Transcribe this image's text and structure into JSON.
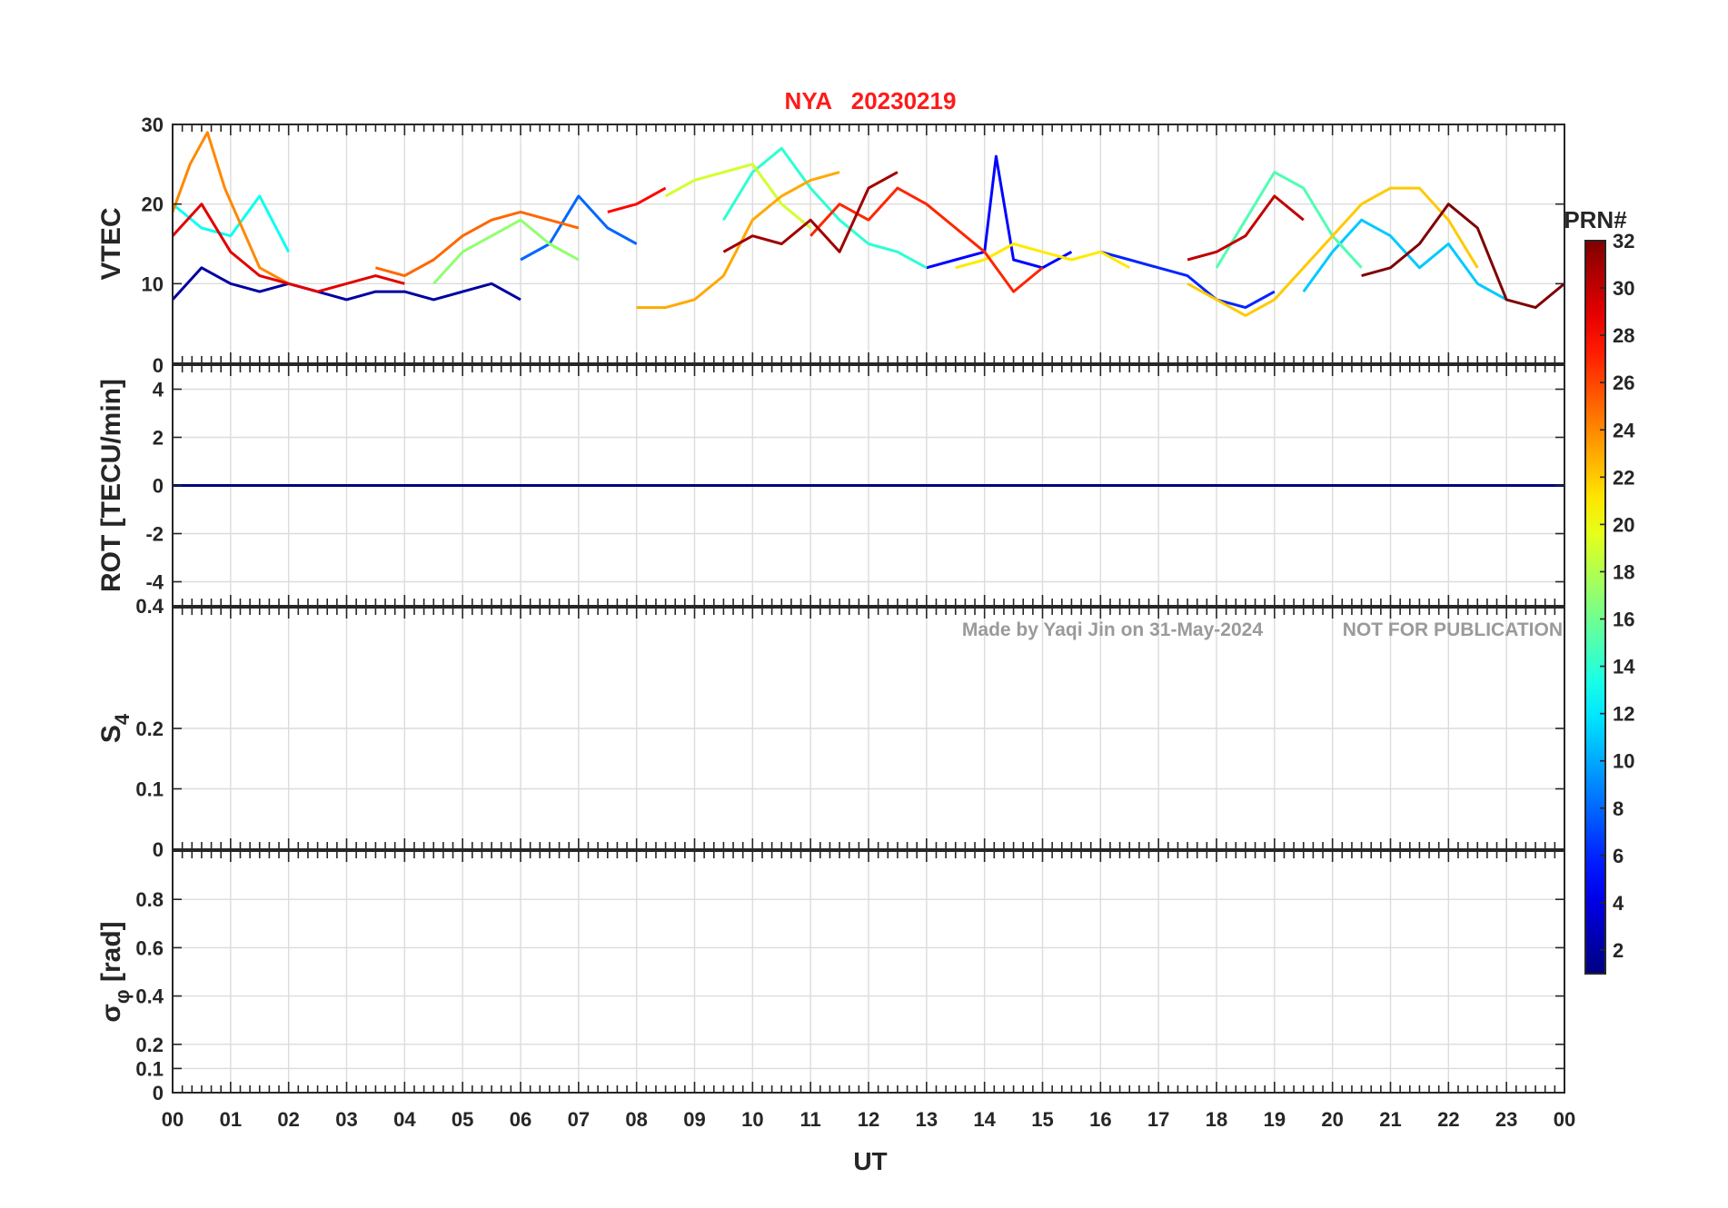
{
  "chart_data": {
    "type": "line",
    "title": "NYA   20230219",
    "title_color": "#ff1a1a",
    "xlabel": "UT",
    "x_ticks": [
      "00",
      "01",
      "02",
      "03",
      "04",
      "05",
      "06",
      "07",
      "08",
      "09",
      "10",
      "11",
      "12",
      "13",
      "14",
      "15",
      "16",
      "17",
      "18",
      "19",
      "20",
      "21",
      "22",
      "23",
      "00"
    ],
    "xlim": [
      0,
      24
    ],
    "grid": true,
    "watermark": {
      "left": "Made by Yaqi Jin on 31-May-2024",
      "right": "NOT FOR PUBLICATION"
    },
    "colorbar": {
      "title": "PRN#",
      "ticks": [
        "2",
        "4",
        "6",
        "8",
        "10",
        "12",
        "14",
        "16",
        "18",
        "20",
        "22",
        "24",
        "26",
        "28",
        "30",
        "32"
      ],
      "range": [
        1,
        32
      ],
      "colormap": "jet"
    },
    "panels": [
      {
        "id": "vtec",
        "ylabel": "VTEC",
        "ylim": [
          0,
          30
        ],
        "y_ticks": [
          {
            "v": 10,
            "label": "10"
          },
          {
            "v": 20,
            "label": "20"
          },
          {
            "v": 30,
            "label": "30"
          }
        ],
        "series": [
          {
            "prn": 2,
            "x": [
              0,
              0.5,
              1,
              1.5,
              2,
              2.5,
              3,
              3.5,
              4,
              4.5,
              5,
              5.5,
              6
            ],
            "y": [
              8,
              12,
              10,
              9,
              10,
              9,
              8,
              9,
              9,
              8,
              9,
              10,
              8
            ]
          },
          {
            "prn": 5,
            "x": [
              13,
              13.5,
              14,
              14.2,
              14.5,
              15,
              15.5
            ],
            "y": [
              12,
              13,
              14,
              26,
              13,
              12,
              14
            ]
          },
          {
            "prn": 6,
            "x": [
              16,
              16.5,
              17,
              17.5,
              18,
              18.5,
              19
            ],
            "y": [
              14,
              13,
              12,
              11,
              8,
              7,
              9
            ]
          },
          {
            "prn": 8,
            "x": [
              6,
              6.5,
              7,
              7.5,
              8
            ],
            "y": [
              13,
              15,
              21,
              17,
              15
            ]
          },
          {
            "prn": 11,
            "x": [
              19.5,
              20,
              20.5,
              21,
              21.5,
              22,
              22.5,
              23
            ],
            "y": [
              9,
              14,
              18,
              16,
              12,
              15,
              10,
              8
            ]
          },
          {
            "prn": 13,
            "x": [
              0,
              0.5,
              1,
              1.5,
              2
            ],
            "y": [
              20,
              17,
              16,
              21,
              14
            ]
          },
          {
            "prn": 14,
            "x": [
              9.5,
              10,
              10.5,
              11,
              11.5,
              12,
              12.5,
              13
            ],
            "y": [
              18,
              24,
              27,
              22,
              18,
              15,
              14,
              12
            ]
          },
          {
            "prn": 15,
            "x": [
              18,
              18.5,
              19,
              19.5,
              20,
              20.5
            ],
            "y": [
              12,
              18,
              24,
              22,
              16,
              12
            ]
          },
          {
            "prn": 17,
            "x": [
              4.5,
              5,
              5.5,
              6,
              6.5,
              7
            ],
            "y": [
              10,
              14,
              16,
              18,
              15,
              13
            ]
          },
          {
            "prn": 19,
            "x": [
              8.5,
              9,
              9.5,
              10,
              10.5,
              11
            ],
            "y": [
              21,
              23,
              24,
              25,
              20,
              17
            ]
          },
          {
            "prn": 21,
            "x": [
              13.5,
              14,
              14.5,
              15,
              15.5,
              16,
              16.5
            ],
            "y": [
              12,
              13,
              15,
              14,
              13,
              14,
              12
            ]
          },
          {
            "prn": 22,
            "x": [
              17.5,
              18,
              18.5,
              19,
              19.5,
              20,
              20.5,
              21,
              21.5,
              22,
              22.5
            ],
            "y": [
              10,
              8,
              6,
              8,
              12,
              16,
              20,
              22,
              22,
              18,
              12
            ]
          },
          {
            "prn": 23,
            "x": [
              8,
              8.5,
              9,
              9.5,
              10,
              10.5,
              11,
              11.5
            ],
            "y": [
              7,
              7,
              8,
              11,
              18,
              21,
              23,
              24
            ]
          },
          {
            "prn": 24,
            "x": [
              0,
              0.3,
              0.6,
              0.9,
              1.2,
              1.5,
              2
            ],
            "y": [
              19,
              25,
              29,
              22,
              17,
              12,
              10
            ]
          },
          {
            "prn": 25,
            "x": [
              3.5,
              4,
              4.5,
              5,
              5.5,
              6,
              6.5,
              7
            ],
            "y": [
              12,
              11,
              13,
              16,
              18,
              19,
              18,
              17
            ]
          },
          {
            "prn": 27,
            "x": [
              11,
              11.5,
              12,
              12.5,
              13,
              13.5,
              14,
              14.5,
              15
            ],
            "y": [
              16,
              20,
              18,
              22,
              20,
              17,
              14,
              9,
              12
            ]
          },
          {
            "prn": 28,
            "x": [
              7.5,
              8,
              8.5
            ],
            "y": [
              19,
              20,
              22
            ]
          },
          {
            "prn": 29,
            "x": [
              0,
              0.5,
              1,
              1.5,
              2,
              2.5,
              3,
              3.5,
              4
            ],
            "y": [
              16,
              20,
              14,
              11,
              10,
              9,
              10,
              11,
              10
            ]
          },
          {
            "prn": 30,
            "x": [
              17.5,
              18,
              18.5,
              19,
              19.5
            ],
            "y": [
              13,
              14,
              16,
              21,
              18
            ]
          },
          {
            "prn": 31,
            "x": [
              9.5,
              10,
              10.5,
              11,
              11.5,
              12,
              12.5
            ],
            "y": [
              14,
              16,
              15,
              18,
              14,
              22,
              24
            ]
          },
          {
            "prn": 32,
            "x": [
              20.5,
              21,
              21.5,
              22,
              22.5,
              23,
              23.5,
              24
            ],
            "y": [
              11,
              12,
              15,
              20,
              17,
              8,
              7,
              10
            ]
          }
        ]
      },
      {
        "id": "rot",
        "ylabel": "ROT [TECU/min]",
        "ylim": [
          -5,
          5
        ],
        "y_ticks": [
          {
            "v": -4,
            "label": "-4"
          },
          {
            "v": -2,
            "label": "-2"
          },
          {
            "v": 0,
            "label": "0"
          },
          {
            "v": 2,
            "label": "2"
          },
          {
            "v": 4,
            "label": "4"
          }
        ],
        "edge_labels": [
          "0",
          "0.4"
        ],
        "series": [
          {
            "prn": 1,
            "x": [
              0,
              6,
              7,
              8,
              9,
              10,
              11,
              12,
              13,
              14,
              15,
              16,
              17,
              18,
              19,
              20,
              21,
              22,
              23,
              24
            ],
            "y": [
              0,
              0,
              0,
              0,
              0,
              0,
              0,
              0,
              0,
              0,
              0,
              0,
              0,
              0,
              0,
              0,
              0,
              0,
              0,
              0
            ]
          }
        ]
      },
      {
        "id": "s4",
        "ylabel": "S",
        "ylabel_sub": "4",
        "ylim": [
          0,
          0.4
        ],
        "y_ticks": [
          {
            "v": 0,
            "label": "0"
          },
          {
            "v": 0.1,
            "label": "0.1"
          },
          {
            "v": 0.2,
            "label": "0.2"
          }
        ],
        "series": []
      },
      {
        "id": "sigphi",
        "ylabel": "σ",
        "ylabel_sub": "φ",
        "ylabel_suffix": " [rad]",
        "ylim": [
          0,
          1
        ],
        "y_ticks": [
          {
            "v": 0,
            "label": "0"
          },
          {
            "v": 0.1,
            "label": "0.1"
          },
          {
            "v": 0.2,
            "label": "0.2"
          },
          {
            "v": 0.4,
            "label": "0.4"
          },
          {
            "v": 0.6,
            "label": "0.6"
          },
          {
            "v": 0.8,
            "label": "0.8"
          }
        ],
        "series": []
      }
    ]
  }
}
